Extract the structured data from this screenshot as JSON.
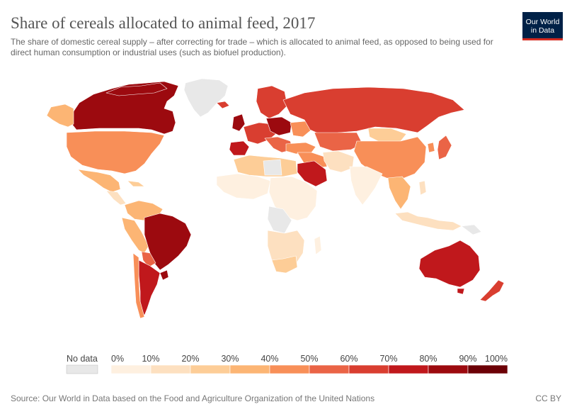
{
  "header": {
    "title": "Share of cereals allocated to animal feed, 2017",
    "subtitle": "The share of domestic cereal supply – after correcting for trade – which is allocated to animal feed, as opposed to being used for direct human consumption or industrial uses (such as biofuel production)."
  },
  "logo": {
    "line1": "Our World",
    "line2": "in Data"
  },
  "footer": {
    "source": "Source: Our World in Data based on the Food and Agriculture Organization of the United Nations",
    "license": "CC BY"
  },
  "legend": {
    "no_data_label": "No data",
    "no_data_color": "#e8e8e8",
    "ticks": [
      "0%",
      "10%",
      "20%",
      "30%",
      "40%",
      "50%",
      "60%",
      "70%",
      "80%",
      "90%",
      "100%"
    ],
    "colors": [
      "#fef0e0",
      "#fde0c0",
      "#fdcd97",
      "#fcb574",
      "#f88f58",
      "#ea6446",
      "#d93e30",
      "#c0181c",
      "#9c0a0f",
      "#6c0006"
    ]
  },
  "chart_data": {
    "type": "choropleth",
    "year": 2017,
    "unit": "%",
    "scale": [
      0,
      100
    ],
    "bins": [
      0,
      10,
      20,
      30,
      40,
      50,
      60,
      70,
      80,
      90,
      100
    ]
  }
}
